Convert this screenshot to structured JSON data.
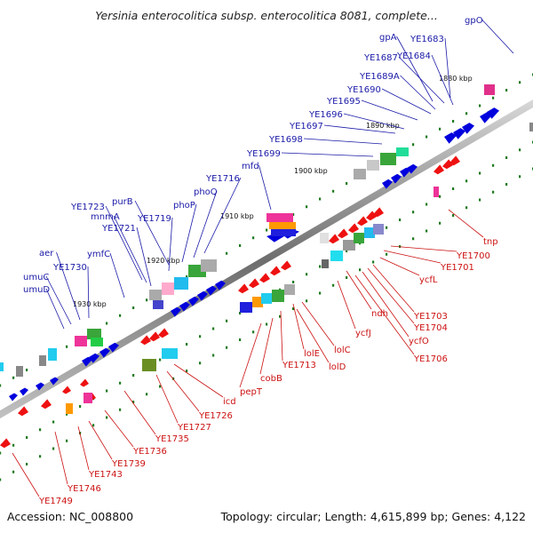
{
  "header": {
    "title": "Yersinia enterocolitica subsp. enterocolitica 8081, complete..."
  },
  "footer": {
    "accession": "Accession: NC_008800",
    "stats": "Topology: circular; Length: 4,615,899 bp; Genes: 4,122"
  },
  "scale_ticks": [
    "1880 kbp",
    "1890 kbp",
    "1900 kbp",
    "1910 kbp",
    "1920 kbp",
    "1930 kbp"
  ],
  "genes_upper": [
    "gpO",
    "gpA",
    "YE1683",
    "YE1687",
    "YE1684",
    "YE1689A",
    "YE1690",
    "YE1695",
    "YE1696",
    "YE1697",
    "YE1698",
    "YE1699",
    "mfd",
    "YE1716",
    "phoQ",
    "phoP",
    "purB",
    "YE1719",
    "YE1723",
    "mnmA",
    "YE1721",
    "ymfC",
    "aer",
    "YE1730",
    "umuC",
    "umuD"
  ],
  "genes_lower": [
    "tnp",
    "YE1700",
    "YE1701",
    "ycfL",
    "YE1703",
    "YE1704",
    "ycfO",
    "YE1706",
    "ndh",
    "ycfJ",
    "lolC",
    "lolE",
    "lolD",
    "YE1713",
    "cobB",
    "pepT",
    "icd",
    "YE1726",
    "YE1727",
    "YE1735",
    "YE1736",
    "YE1739",
    "YE1743",
    "YE1746",
    "YE1749"
  ],
  "colors": {
    "backbone": "#8c8c8c",
    "forward_gene": "#0000dd",
    "reverse_gene": "#ee1111",
    "label_forward": "#1a1aa8",
    "label_reverse": "#cc1111",
    "tick_mark": "#1e7a1e"
  }
}
